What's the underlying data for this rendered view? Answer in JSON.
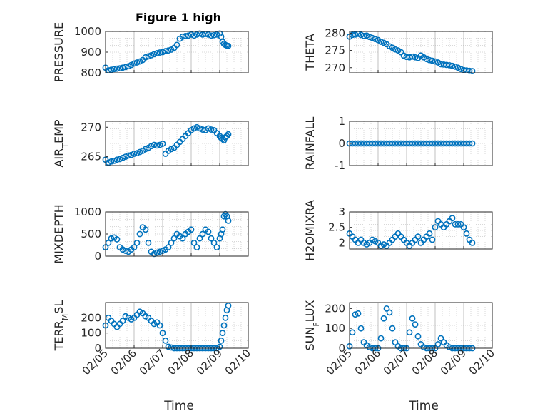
{
  "figure_title": "Figure 1 high",
  "x_axis_label": "Time",
  "x_tick_labels": [
    "02/05",
    "02/06",
    "02/07",
    "02/08",
    "02/09",
    "02/10"
  ],
  "colors": {
    "marker": "#0072BD",
    "axis": "#262626",
    "grid": "#b0b0b0"
  },
  "chart_data": [
    {
      "type": "scatter",
      "ylabel": "PRESSURE",
      "ylim": [
        800,
        1000
      ],
      "yticks": [
        "800",
        "900",
        "1000"
      ],
      "xlim": [
        0,
        5
      ],
      "grid": true,
      "x": [
        0,
        0.1,
        0.2,
        0.3,
        0.4,
        0.5,
        0.6,
        0.7,
        0.8,
        0.9,
        1.0,
        1.1,
        1.2,
        1.3,
        1.4,
        1.5,
        1.6,
        1.7,
        1.8,
        1.9,
        2.0,
        2.1,
        2.2,
        2.3,
        2.4,
        2.5,
        2.6,
        2.7,
        2.8,
        2.9,
        3.0,
        3.1,
        3.2,
        3.3,
        3.4,
        3.5,
        3.6,
        3.7,
        3.8,
        3.9,
        4.0,
        4.05,
        4.1,
        4.15,
        4.2,
        4.25,
        4.3
      ],
      "y": [
        825,
        812,
        815,
        818,
        820,
        822,
        825,
        828,
        832,
        838,
        845,
        850,
        855,
        862,
        875,
        880,
        885,
        890,
        895,
        898,
        900,
        905,
        908,
        912,
        920,
        935,
        965,
        975,
        978,
        980,
        985,
        980,
        985,
        990,
        985,
        988,
        985,
        980,
        982,
        985,
        990,
        975,
        950,
        940,
        935,
        932,
        930
      ]
    },
    {
      "type": "scatter",
      "ylabel": "THETA",
      "ylim": [
        268.5,
        280.5
      ],
      "yticks": [
        "270",
        "275",
        "280"
      ],
      "xlim": [
        0,
        5
      ],
      "grid": true,
      "x": [
        0,
        0.1,
        0.2,
        0.3,
        0.4,
        0.5,
        0.6,
        0.7,
        0.8,
        0.9,
        1.0,
        1.1,
        1.2,
        1.3,
        1.4,
        1.5,
        1.6,
        1.7,
        1.8,
        1.9,
        2.0,
        2.1,
        2.2,
        2.3,
        2.4,
        2.5,
        2.6,
        2.7,
        2.8,
        2.9,
        3.0,
        3.1,
        3.2,
        3.3,
        3.4,
        3.5,
        3.6,
        3.7,
        3.8,
        3.9,
        4.0,
        4.1,
        4.2,
        4.3
      ],
      "y": [
        279,
        279.5,
        279.6,
        279.8,
        279.5,
        279.2,
        279.3,
        278.9,
        278.6,
        278.3,
        278.0,
        277.5,
        277.2,
        276.8,
        276.2,
        275.8,
        275.3,
        275.0,
        274.5,
        273.5,
        273.1,
        273.0,
        273.2,
        273.0,
        272.8,
        273.5,
        273.0,
        272.5,
        272.2,
        272.0,
        271.8,
        271.5,
        271.0,
        270.9,
        270.8,
        270.7,
        270.5,
        270.3,
        270.0,
        269.6,
        269.3,
        269.2,
        269.1,
        269.0
      ]
    },
    {
      "type": "scatter",
      "ylabel": "AIR_TEMP",
      "ylim": [
        263.5,
        271
      ],
      "yticks": [
        "265",
        "270"
      ],
      "xlim": [
        0,
        5
      ],
      "grid": true,
      "x": [
        0,
        0.1,
        0.2,
        0.3,
        0.4,
        0.5,
        0.6,
        0.7,
        0.8,
        0.9,
        1.0,
        1.1,
        1.2,
        1.3,
        1.4,
        1.5,
        1.6,
        1.7,
        1.8,
        1.9,
        2.0,
        2.1,
        2.2,
        2.3,
        2.4,
        2.5,
        2.6,
        2.7,
        2.8,
        2.9,
        3.0,
        3.1,
        3.2,
        3.3,
        3.4,
        3.5,
        3.6,
        3.7,
        3.8,
        3.9,
        4.0,
        4.05,
        4.1,
        4.15,
        4.2,
        4.25,
        4.3
      ],
      "y": [
        264.5,
        264.0,
        264.2,
        264.3,
        264.5,
        264.6,
        264.8,
        265.0,
        265.2,
        265.3,
        265.5,
        265.6,
        265.8,
        266.0,
        266.3,
        266.5,
        266.8,
        267.0,
        266.9,
        267.0,
        267.2,
        265.5,
        266.0,
        266.3,
        266.5,
        267.0,
        267.5,
        268.0,
        268.5,
        269.0,
        269.5,
        269.8,
        270.0,
        269.8,
        269.6,
        269.5,
        269.8,
        269.6,
        269.5,
        269.0,
        268.5,
        268.2,
        268.0,
        267.8,
        268.3,
        268.5,
        268.8
      ]
    },
    {
      "type": "scatter",
      "ylabel": "RAINFALL",
      "ylim": [
        -1,
        1
      ],
      "yticks": [
        "-1",
        "0",
        "1"
      ],
      "xlim": [
        0,
        5
      ],
      "grid": true,
      "x": [
        0,
        0.1,
        0.2,
        0.3,
        0.4,
        0.5,
        0.6,
        0.7,
        0.8,
        0.9,
        1.0,
        1.1,
        1.2,
        1.3,
        1.4,
        1.5,
        1.6,
        1.7,
        1.8,
        1.9,
        2.0,
        2.1,
        2.2,
        2.3,
        2.4,
        2.5,
        2.6,
        2.7,
        2.8,
        2.9,
        3.0,
        3.1,
        3.2,
        3.3,
        3.4,
        3.5,
        3.6,
        3.7,
        3.8,
        3.9,
        4.0,
        4.1,
        4.2,
        4.3
      ],
      "y": [
        0,
        0,
        0,
        0,
        0,
        0,
        0,
        0,
        0,
        0,
        0,
        0,
        0,
        0,
        0,
        0,
        0,
        0,
        0,
        0,
        0,
        0,
        0,
        0,
        0,
        0,
        0,
        0,
        0,
        0,
        0,
        0,
        0,
        0,
        0,
        0,
        0,
        0,
        0,
        0,
        0,
        0,
        0,
        0
      ]
    },
    {
      "type": "scatter",
      "ylabel": "MIXDEPTH",
      "ylim": [
        0,
        1000
      ],
      "yticks": [
        "0",
        "500",
        "1000"
      ],
      "xlim": [
        0,
        5
      ],
      "grid": true,
      "x": [
        0,
        0.1,
        0.2,
        0.3,
        0.4,
        0.5,
        0.6,
        0.7,
        0.8,
        0.9,
        1.0,
        1.1,
        1.2,
        1.3,
        1.4,
        1.5,
        1.6,
        1.7,
        1.8,
        1.9,
        2.0,
        2.1,
        2.2,
        2.3,
        2.4,
        2.5,
        2.6,
        2.7,
        2.8,
        2.9,
        3.0,
        3.1,
        3.2,
        3.3,
        3.4,
        3.5,
        3.6,
        3.7,
        3.8,
        3.9,
        4.0,
        4.05,
        4.1,
        4.15,
        4.2,
        4.25,
        4.3
      ],
      "y": [
        200,
        300,
        400,
        420,
        380,
        200,
        150,
        120,
        100,
        150,
        200,
        300,
        500,
        650,
        600,
        300,
        100,
        50,
        80,
        100,
        120,
        150,
        200,
        300,
        400,
        500,
        450,
        400,
        500,
        550,
        600,
        300,
        200,
        400,
        500,
        600,
        550,
        400,
        300,
        200,
        400,
        500,
        600,
        900,
        950,
        900,
        800
      ]
    },
    {
      "type": "scatter",
      "ylabel": "H2OMIXRA",
      "ylim": [
        1.8,
        3
      ],
      "yticks": [
        "2",
        "2.5",
        "3"
      ],
      "xlim": [
        0,
        5
      ],
      "grid": true,
      "x": [
        0,
        0.1,
        0.2,
        0.3,
        0.4,
        0.5,
        0.6,
        0.7,
        0.8,
        0.9,
        1.0,
        1.1,
        1.2,
        1.3,
        1.4,
        1.5,
        1.6,
        1.7,
        1.8,
        1.9,
        2.0,
        2.1,
        2.2,
        2.3,
        2.4,
        2.5,
        2.6,
        2.7,
        2.8,
        2.9,
        3.0,
        3.1,
        3.2,
        3.3,
        3.4,
        3.5,
        3.6,
        3.7,
        3.8,
        3.9,
        4.0,
        4.1,
        4.2,
        4.3
      ],
      "y": [
        2.3,
        2.2,
        2.1,
        2.0,
        2.1,
        2.0,
        1.95,
        2.0,
        2.1,
        2.05,
        2.0,
        1.9,
        1.95,
        1.9,
        2.0,
        2.1,
        2.2,
        2.3,
        2.2,
        2.1,
        2.0,
        1.9,
        2.0,
        2.1,
        2.2,
        2.0,
        2.1,
        2.2,
        2.3,
        2.1,
        2.5,
        2.7,
        2.6,
        2.5,
        2.6,
        2.7,
        2.8,
        2.6,
        2.6,
        2.6,
        2.5,
        2.3,
        2.1,
        2.0
      ]
    },
    {
      "type": "scatter",
      "ylabel": "TERR_MSL",
      "ylim": [
        0,
        300
      ],
      "yticks": [
        "0",
        "100",
        "200"
      ],
      "xlim": [
        0,
        5
      ],
      "grid": true,
      "x": [
        0,
        0.1,
        0.2,
        0.3,
        0.4,
        0.5,
        0.6,
        0.7,
        0.8,
        0.9,
        1.0,
        1.1,
        1.2,
        1.3,
        1.4,
        1.5,
        1.6,
        1.7,
        1.8,
        1.9,
        2.0,
        2.1,
        2.2,
        2.3,
        2.4,
        2.5,
        2.6,
        2.7,
        2.8,
        2.9,
        3.0,
        3.1,
        3.2,
        3.3,
        3.4,
        3.5,
        3.6,
        3.7,
        3.8,
        3.9,
        4.0,
        4.05,
        4.1,
        4.15,
        4.2,
        4.25,
        4.3
      ],
      "y": [
        150,
        200,
        180,
        160,
        140,
        160,
        180,
        210,
        200,
        190,
        200,
        220,
        240,
        230,
        210,
        200,
        180,
        160,
        170,
        150,
        100,
        50,
        10,
        5,
        0,
        0,
        0,
        0,
        0,
        0,
        0,
        0,
        0,
        0,
        0,
        0,
        0,
        0,
        0,
        0,
        10,
        50,
        100,
        150,
        200,
        250,
        280
      ]
    },
    {
      "type": "scatter",
      "ylabel": "SUN_FLUX",
      "ylim": [
        0,
        230
      ],
      "yticks": [
        "0",
        "100",
        "200"
      ],
      "xlim": [
        0,
        5
      ],
      "grid": true,
      "x": [
        0,
        0.1,
        0.2,
        0.3,
        0.4,
        0.5,
        0.6,
        0.7,
        0.8,
        0.9,
        1.0,
        1.1,
        1.2,
        1.3,
        1.4,
        1.5,
        1.6,
        1.7,
        1.8,
        1.9,
        2.0,
        2.1,
        2.2,
        2.3,
        2.4,
        2.5,
        2.6,
        2.7,
        2.8,
        2.9,
        3.0,
        3.1,
        3.2,
        3.3,
        3.4,
        3.5,
        3.6,
        3.7,
        3.8,
        3.9,
        4.0,
        4.1,
        4.2,
        4.3
      ],
      "y": [
        10,
        80,
        170,
        175,
        100,
        30,
        15,
        5,
        0,
        0,
        0,
        50,
        150,
        200,
        180,
        100,
        30,
        10,
        0,
        0,
        0,
        80,
        150,
        120,
        60,
        20,
        5,
        0,
        0,
        0,
        0,
        20,
        50,
        30,
        15,
        5,
        0,
        0,
        0,
        0,
        0,
        0,
        0,
        0
      ]
    }
  ]
}
